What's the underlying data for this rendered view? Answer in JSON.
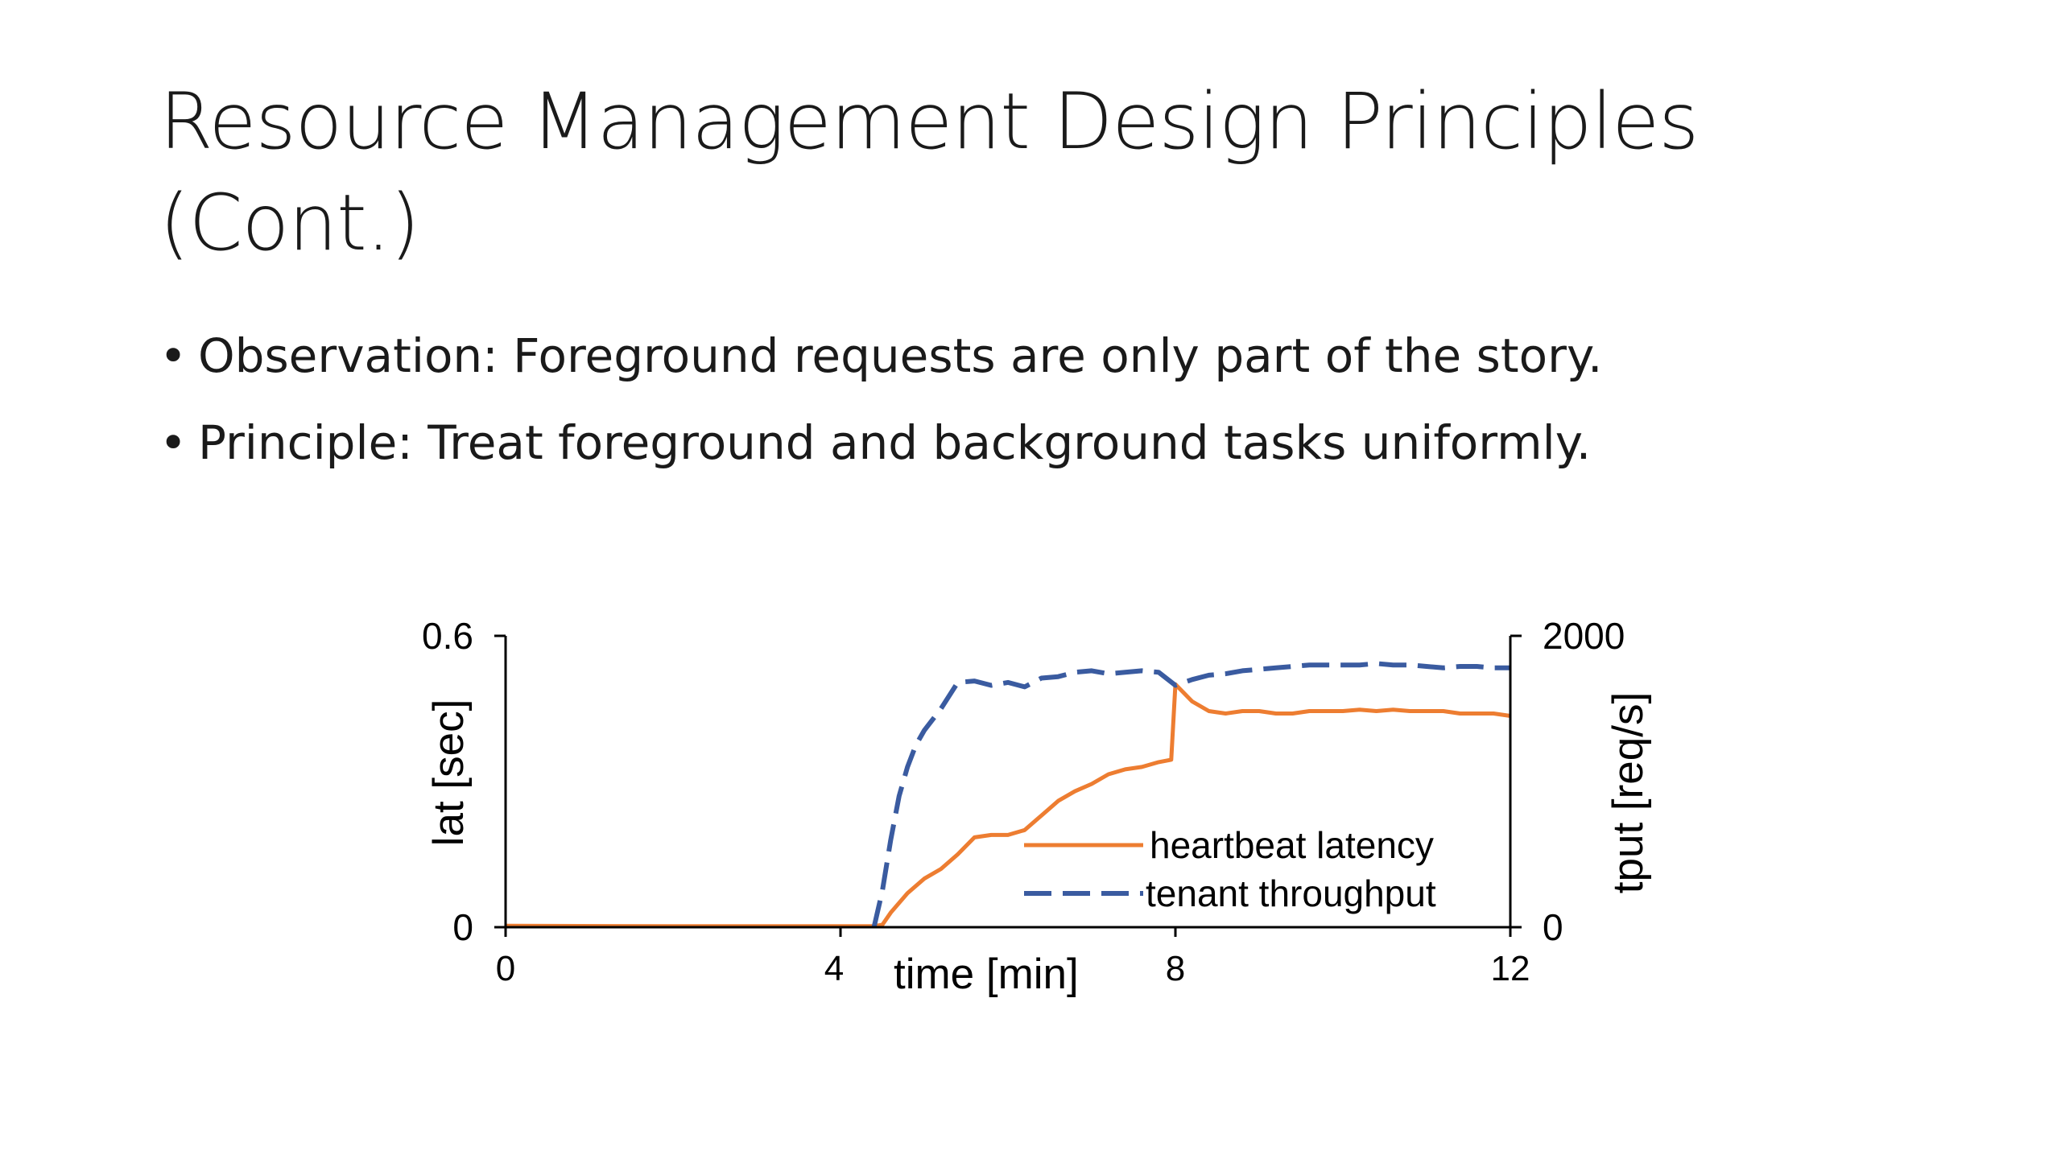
{
  "slide": {
    "title_line1": "Resource Management Design Principles",
    "title_line2": "(Cont.)",
    "bullets": [
      "Observation: Foreground requests are only part of the story.",
      "Principle: Treat foreground and background tasks uniformly."
    ]
  },
  "chart_data": {
    "type": "line",
    "title": "",
    "xlabel": "time [min]",
    "ylabel_left": "lat [sec]",
    "ylabel_right": "tput [req/s]",
    "xlim": [
      0,
      12
    ],
    "ylim_left": [
      0,
      0.6
    ],
    "ylim_right": [
      0,
      2000
    ],
    "x_ticks": [
      0,
      4,
      8,
      12
    ],
    "x_tick_labels": [
      "0",
      "4",
      "8",
      "12"
    ],
    "y_left_tick_labels": [
      "0",
      "0.6"
    ],
    "y_right_tick_labels": [
      "0",
      "2000"
    ],
    "grid": false,
    "legend_position": "bottom-right",
    "series": [
      {
        "name": "heartbeat latency",
        "axis": "left",
        "color": "#ed7d31",
        "style": "solid",
        "x": [
          0,
          2,
          4.4,
          4.5,
          4.6,
          4.8,
          5.0,
          5.2,
          5.4,
          5.6,
          5.8,
          6.0,
          6.2,
          6.4,
          6.6,
          6.8,
          7.0,
          7.2,
          7.4,
          7.6,
          7.8,
          7.95,
          8.0,
          8.2,
          8.4,
          8.6,
          8.8,
          9.0,
          9.2,
          9.4,
          9.6,
          9.8,
          10.0,
          10.2,
          10.4,
          10.6,
          10.8,
          11.0,
          11.2,
          11.4,
          11.6,
          11.8,
          12.0
        ],
        "values": [
          0.003,
          0.002,
          0.002,
          0.005,
          0.03,
          0.07,
          0.1,
          0.12,
          0.15,
          0.185,
          0.19,
          0.19,
          0.2,
          0.23,
          0.26,
          0.28,
          0.295,
          0.315,
          0.325,
          0.33,
          0.34,
          0.345,
          0.5,
          0.465,
          0.445,
          0.44,
          0.445,
          0.445,
          0.44,
          0.44,
          0.445,
          0.445,
          0.445,
          0.448,
          0.445,
          0.448,
          0.445,
          0.445,
          0.445,
          0.44,
          0.44,
          0.44,
          0.435
        ]
      },
      {
        "name": "tenant throughput",
        "axis": "right",
        "color": "#3a5ba0",
        "style": "dashed",
        "x": [
          4.4,
          4.5,
          4.6,
          4.7,
          4.8,
          4.9,
          5.0,
          5.2,
          5.4,
          5.6,
          5.8,
          6.0,
          6.2,
          6.4,
          6.6,
          6.8,
          7.0,
          7.2,
          7.4,
          7.6,
          7.8,
          8.0,
          8.2,
          8.4,
          8.6,
          8.8,
          9.0,
          9.2,
          9.4,
          9.6,
          9.8,
          10.0,
          10.2,
          10.4,
          10.6,
          10.8,
          11.0,
          11.2,
          11.4,
          11.6,
          11.8,
          12.0
        ],
        "values": [
          0,
          250,
          600,
          900,
          1100,
          1250,
          1350,
          1500,
          1680,
          1690,
          1660,
          1680,
          1650,
          1710,
          1720,
          1750,
          1760,
          1740,
          1750,
          1760,
          1750,
          1660,
          1700,
          1730,
          1740,
          1760,
          1770,
          1780,
          1790,
          1800,
          1800,
          1800,
          1800,
          1810,
          1800,
          1800,
          1790,
          1780,
          1790,
          1790,
          1780,
          1780
        ]
      }
    ]
  }
}
